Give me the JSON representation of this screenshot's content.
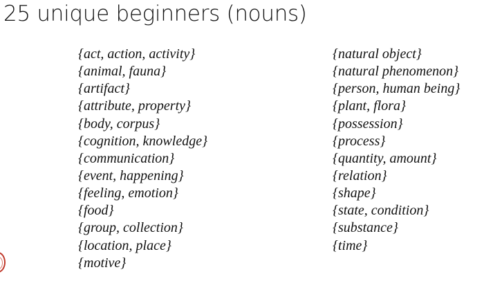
{
  "title": "25 unique beginners (nouns)",
  "left_column": [
    "{act, action, activity}",
    "{animal, fauna}",
    "{artifact}",
    "{attribute, property}",
    "{body, corpus}",
    "{cognition, knowledge}",
    "{communication}",
    "{event, happening}",
    "{feeling, emotion}",
    "{food}",
    "{group, collection}",
    "{location, place}",
    "{motive}"
  ],
  "right_column": [
    "{natural object}",
    "{natural phenomenon}",
    "{person, human being}",
    "{plant, flora}",
    "{possession}",
    "{process}",
    "{quantity, amount}",
    "{relation}",
    "{shape}",
    "{state, condition}",
    "{substance}",
    "{time}"
  ],
  "colors": {
    "text": "#111111",
    "background": "#ffffff",
    "logo": "#c0392b"
  }
}
